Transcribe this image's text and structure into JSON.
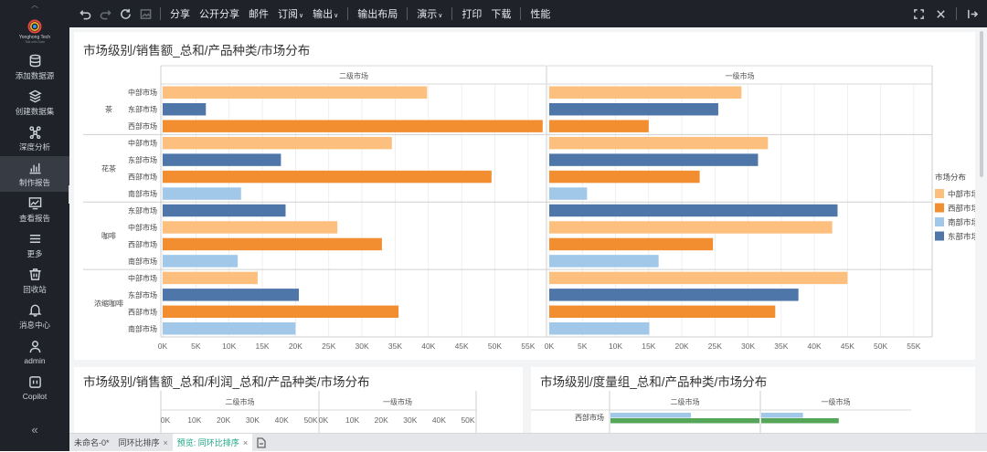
{
  "app": {
    "logo_text": "Yonghong Tech",
    "logo_sub": "Talk with Data"
  },
  "sidebar": {
    "items": [
      {
        "label": "添加数据源",
        "icon": "database-icon"
      },
      {
        "label": "创建数据集",
        "icon": "layers-icon"
      },
      {
        "label": "深度分析",
        "icon": "network-icon"
      },
      {
        "label": "制作报告",
        "icon": "bar-chart-icon",
        "active": true
      },
      {
        "label": "查看报告",
        "icon": "line-chart-icon"
      },
      {
        "label": "更多",
        "icon": "menu-icon"
      },
      {
        "label": "回收站",
        "icon": "trash-icon"
      },
      {
        "label": "消息中心",
        "icon": "bell-icon"
      },
      {
        "label": "admin",
        "icon": "user-icon"
      }
    ],
    "copilot": {
      "label": "Copilot",
      "icon": "copilot-icon"
    }
  },
  "toolbar": {
    "undo_icon": "undo-icon",
    "redo_icon": "redo-icon",
    "refresh_icon": "refresh-icon",
    "image_icon": "image-icon",
    "share": "分享",
    "public_share": "公开分享",
    "mail": "邮件",
    "subscribe": "订阅",
    "export": "输出",
    "export_layout": "输出布局",
    "present": "演示",
    "print": "打印",
    "download": "下载",
    "performance": "性能"
  },
  "colors": {
    "中部市场": "#fdbf7e",
    "东部市场": "#4f76a8",
    "西部市场": "#f28e2f",
    "南部市场": "#a1c8e9",
    "green": "#56a659"
  },
  "chart1": {
    "title": "市场级别/销售额_总和/产品种类/市场分布",
    "legend_title": "市场分布",
    "legend": [
      "中部市场",
      "西部市场",
      "南部市场",
      "东部市场"
    ],
    "x_ticks": [
      "0K",
      "5K",
      "10K",
      "15K",
      "20K",
      "25K",
      "30K",
      "35K",
      "40K",
      "45K",
      "50K",
      "55K"
    ]
  },
  "chart_data": [
    {
      "type": "bar",
      "title": "市场级别/销售额_总和/产品种类/市场分布",
      "orientation": "horizontal",
      "legend_title": "市场分布",
      "legend_position": "right",
      "grid": true,
      "xlim": [
        0,
        57500
      ],
      "panels": [
        "二级市场",
        "一级市场"
      ],
      "groups": [
        {
          "name": "茶",
          "rows": [
            {
              "market": "中部市场",
              "二级市场": 39800,
              "一级市场": 29000
            },
            {
              "market": "东部市场",
              "二级市场": 6500,
              "一级市场": 25500
            },
            {
              "market": "西部市场",
              "二级市场": 57200,
              "一级市场": 15000
            }
          ]
        },
        {
          "name": "花茶",
          "rows": [
            {
              "market": "中部市场",
              "二级市场": 34500,
              "一级市场": 33000
            },
            {
              "market": "东部市场",
              "二级市场": 17800,
              "一级市场": 31500
            },
            {
              "market": "西部市场",
              "二级市场": 49500,
              "一级市场": 22700
            },
            {
              "market": "南部市场",
              "二级市场": 11800,
              "一级市场": 5700
            }
          ]
        },
        {
          "name": "咖啡",
          "rows": [
            {
              "market": "东部市场",
              "二级市场": 18500,
              "一级市场": 43500
            },
            {
              "market": "中部市场",
              "二级市场": 26300,
              "一级市场": 42700
            },
            {
              "market": "西部市场",
              "二级市场": 33000,
              "一级市场": 24700
            },
            {
              "market": "南部市场",
              "二级市场": 11300,
              "一级市场": 16500
            }
          ]
        },
        {
          "name": "浓缩咖啡",
          "rows": [
            {
              "market": "中部市场",
              "二级市场": 14300,
              "一级市场": 45000
            },
            {
              "market": "东部市场",
              "二级市场": 20500,
              "一级市场": 37600
            },
            {
              "market": "西部市场",
              "二级市场": 35500,
              "一级市场": 34100
            },
            {
              "market": "南部市场",
              "二级市场": 20000,
              "一级市场": 15100
            }
          ]
        }
      ]
    },
    {
      "type": "bar",
      "title": "市场级别/销售额_总和/利润_总和/产品种类/市场分布",
      "panels": [
        "二级市场",
        "一级市场"
      ],
      "x_ticks_left": [
        "0K",
        "10K",
        "20K",
        "30K",
        "40K",
        "50K"
      ],
      "x_ticks_right": [
        "0K",
        "10K",
        "20K",
        "30K",
        "40K",
        "50K"
      ]
    },
    {
      "type": "bar",
      "title": "市场级别/度量组_总和/产品种类/市场分布",
      "panels": [
        "二级市场",
        "一级市场"
      ],
      "row_label": "西部市场",
      "bars": [
        {
          "panel": "二级市场",
          "series": "blue",
          "value": 0.54
        },
        {
          "panel": "二级市场",
          "series": "green",
          "value": 1.0
        },
        {
          "panel": "一级市场",
          "series": "blue",
          "value": 0.28
        },
        {
          "panel": "一级市场",
          "series": "green",
          "value": 0.52
        }
      ]
    }
  ],
  "chart2": {
    "title": "市场级别/销售额_总和/利润_总和/产品种类/市场分布",
    "panel_left": "二级市场",
    "panel_right": "一级市场"
  },
  "chart3": {
    "title": "市场级别/度量组_总和/产品种类/市场分布",
    "panel_left": "二级市场",
    "panel_right": "一级市场",
    "row_label": "西部市场"
  },
  "tabs": [
    {
      "label": "未命名-0*",
      "active": false
    },
    {
      "label": "同环比排序",
      "active": false
    },
    {
      "label": "预览: 同环比排序",
      "active": true
    }
  ]
}
